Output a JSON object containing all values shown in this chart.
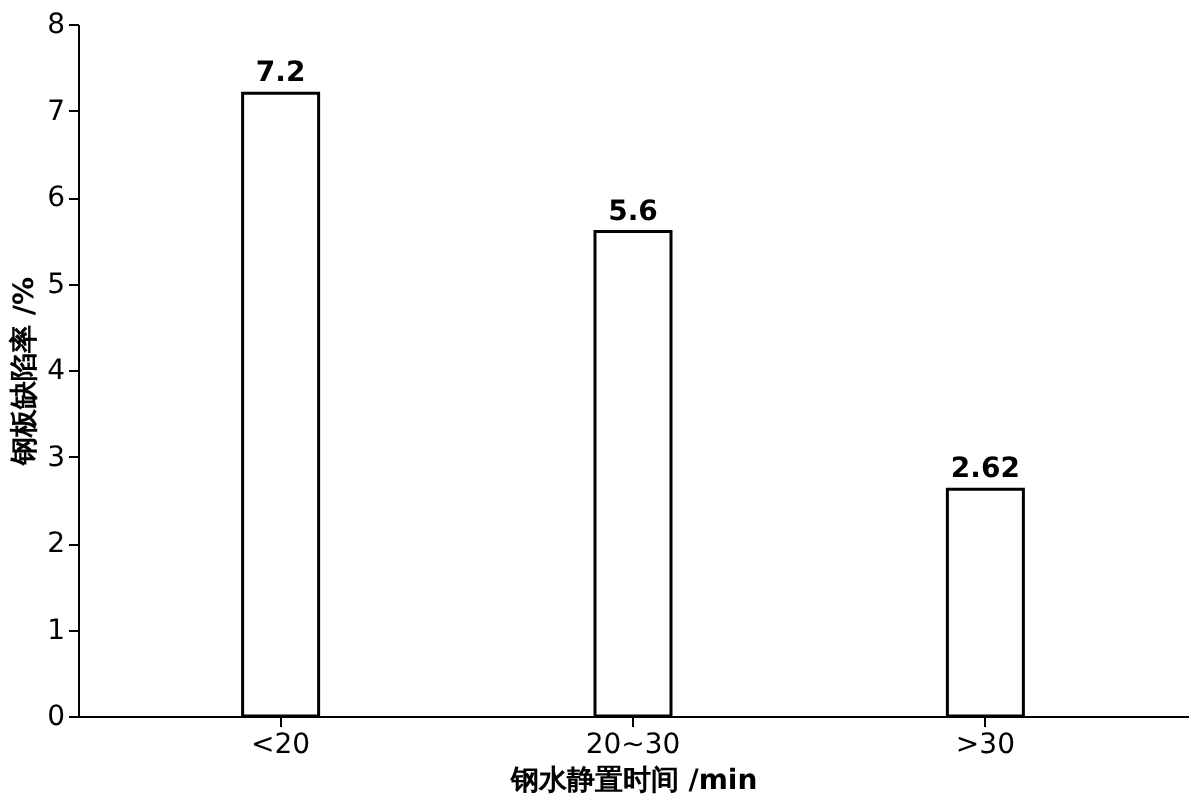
{
  "chart_data": {
    "type": "bar",
    "categories": [
      "<20",
      "20~30",
      ">30"
    ],
    "values": [
      7.2,
      5.6,
      2.62
    ],
    "color": "#ffffff",
    "xlabel": "钢水静置时间 /min",
    "ylabel": "钢板缺陷率 /%",
    "ylim": [
      0,
      8
    ],
    "yticks": [
      0,
      1,
      2,
      3,
      4,
      5,
      6,
      7,
      8
    ],
    "data_labels": true,
    "grid": false
  }
}
